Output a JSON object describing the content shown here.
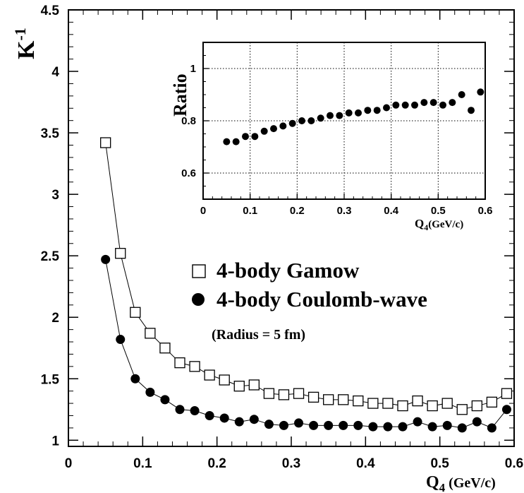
{
  "chart_data": [
    {
      "type": "line",
      "xlabel_main": "Q",
      "xlabel_sub": "4",
      "xlabel_unit": " (GeV/c)",
      "ylabel_main": "K",
      "ylabel_sup": "-1",
      "xlim": [
        0,
        0.6
      ],
      "ylim": [
        0.95,
        4.5
      ],
      "x_ticks": [
        "0",
        "0.1",
        "0.2",
        "0.3",
        "0.4",
        "0.5",
        "0.6"
      ],
      "y_ticks": [
        "1",
        "1.5",
        "2",
        "2.5",
        "3",
        "3.5",
        "4",
        "4.5"
      ],
      "grid": false,
      "legend_position": "center-right",
      "annotation": "(Radius = 5 fm)",
      "x": [
        0.05,
        0.07,
        0.09,
        0.11,
        0.13,
        0.15,
        0.17,
        0.19,
        0.21,
        0.23,
        0.25,
        0.27,
        0.29,
        0.31,
        0.33,
        0.35,
        0.37,
        0.39,
        0.41,
        0.43,
        0.45,
        0.47,
        0.49,
        0.51,
        0.53,
        0.55,
        0.57,
        0.59
      ],
      "series": [
        {
          "name": "4-body Gamow",
          "marker": "open-square",
          "values": [
            3.42,
            2.52,
            2.04,
            1.87,
            1.75,
            1.63,
            1.6,
            1.53,
            1.49,
            1.44,
            1.45,
            1.38,
            1.37,
            1.38,
            1.35,
            1.33,
            1.33,
            1.32,
            1.3,
            1.3,
            1.28,
            1.32,
            1.28,
            1.3,
            1.25,
            1.28,
            1.31,
            1.38
          ]
        },
        {
          "name": "4-body Coulomb-wave",
          "marker": "filled-circle",
          "values": [
            2.47,
            1.82,
            1.5,
            1.39,
            1.33,
            1.25,
            1.24,
            1.2,
            1.18,
            1.15,
            1.17,
            1.13,
            1.12,
            1.14,
            1.12,
            1.12,
            1.12,
            1.12,
            1.11,
            1.11,
            1.11,
            1.15,
            1.11,
            1.12,
            1.1,
            1.15,
            1.1,
            1.25
          ]
        }
      ]
    },
    {
      "type": "scatter",
      "xlabel_main": "Q",
      "xlabel_sub": "4",
      "xlabel_unit": "(GeV/c)",
      "ylabel": "Ratio",
      "xlim": [
        0,
        0.6
      ],
      "ylim": [
        0.5,
        1.1
      ],
      "x_ticks": [
        "0",
        "0.1",
        "0.2",
        "0.3",
        "0.4",
        "0.5",
        "0.6"
      ],
      "y_ticks": [
        "0.6",
        "0.8",
        "1"
      ],
      "grid": true,
      "x": [
        0.05,
        0.07,
        0.09,
        0.11,
        0.13,
        0.15,
        0.17,
        0.19,
        0.21,
        0.23,
        0.25,
        0.27,
        0.29,
        0.31,
        0.33,
        0.35,
        0.37,
        0.39,
        0.41,
        0.43,
        0.45,
        0.47,
        0.49,
        0.51,
        0.53,
        0.55,
        0.57,
        0.59
      ],
      "values": [
        0.72,
        0.72,
        0.74,
        0.74,
        0.76,
        0.77,
        0.78,
        0.79,
        0.8,
        0.8,
        0.81,
        0.82,
        0.82,
        0.83,
        0.83,
        0.84,
        0.84,
        0.85,
        0.86,
        0.86,
        0.86,
        0.87,
        0.87,
        0.86,
        0.87,
        0.9,
        0.84,
        0.91
      ]
    }
  ]
}
